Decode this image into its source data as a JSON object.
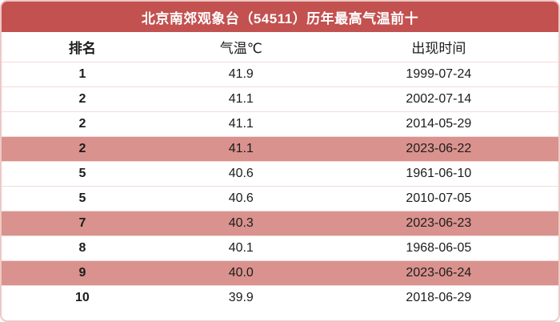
{
  "title": "北京南郊观象台（54511）历年最高气温前十",
  "columns": [
    "排名",
    "气温℃",
    "出现时间"
  ],
  "rows": [
    {
      "rank": "1",
      "temp": "41.9",
      "date": "1999-07-24",
      "highlight": false
    },
    {
      "rank": "2",
      "temp": "41.1",
      "date": "2002-07-14",
      "highlight": false
    },
    {
      "rank": "2",
      "temp": "41.1",
      "date": "2014-05-29",
      "highlight": false
    },
    {
      "rank": "2",
      "temp": "41.1",
      "date": "2023-06-22",
      "highlight": true
    },
    {
      "rank": "5",
      "temp": "40.6",
      "date": "1961-06-10",
      "highlight": false
    },
    {
      "rank": "5",
      "temp": "40.6",
      "date": "2010-07-05",
      "highlight": false
    },
    {
      "rank": "7",
      "temp": "40.3",
      "date": "2023-06-23",
      "highlight": true
    },
    {
      "rank": "8",
      "temp": "40.1",
      "date": "1968-06-05",
      "highlight": false
    },
    {
      "rank": "9",
      "temp": "40.0",
      "date": "2023-06-24",
      "highlight": true
    },
    {
      "rank": "10",
      "temp": "39.9",
      "date": "2018-06-29",
      "highlight": false
    }
  ],
  "colors": {
    "header_bg": "#c25150",
    "highlight_bg": "#d9928d",
    "border": "#eec9c5",
    "separator": "#f3dbd8",
    "text": "#1c1c1c",
    "title_text": "#ffffff"
  },
  "chart_data": {
    "type": "table",
    "title": "北京南郊观象台（54511）历年最高气温前十",
    "columns": [
      "排名",
      "气温℃",
      "出现时间"
    ],
    "rows": [
      [
        "1",
        "41.9",
        "1999-07-24"
      ],
      [
        "2",
        "41.1",
        "2002-07-14"
      ],
      [
        "2",
        "41.1",
        "2014-05-29"
      ],
      [
        "2",
        "41.1",
        "2023-06-22"
      ],
      [
        "5",
        "40.6",
        "1961-06-10"
      ],
      [
        "5",
        "40.6",
        "2010-07-05"
      ],
      [
        "7",
        "40.3",
        "2023-06-23"
      ],
      [
        "8",
        "40.1",
        "1968-06-05"
      ],
      [
        "9",
        "40.0",
        "2023-06-24"
      ],
      [
        "10",
        "39.9",
        "2018-06-29"
      ]
    ],
    "highlighted_row_indices": [
      3,
      6,
      8
    ],
    "highlight_meaning": "2023年出现的高温记录行以粉色底纹标出"
  }
}
